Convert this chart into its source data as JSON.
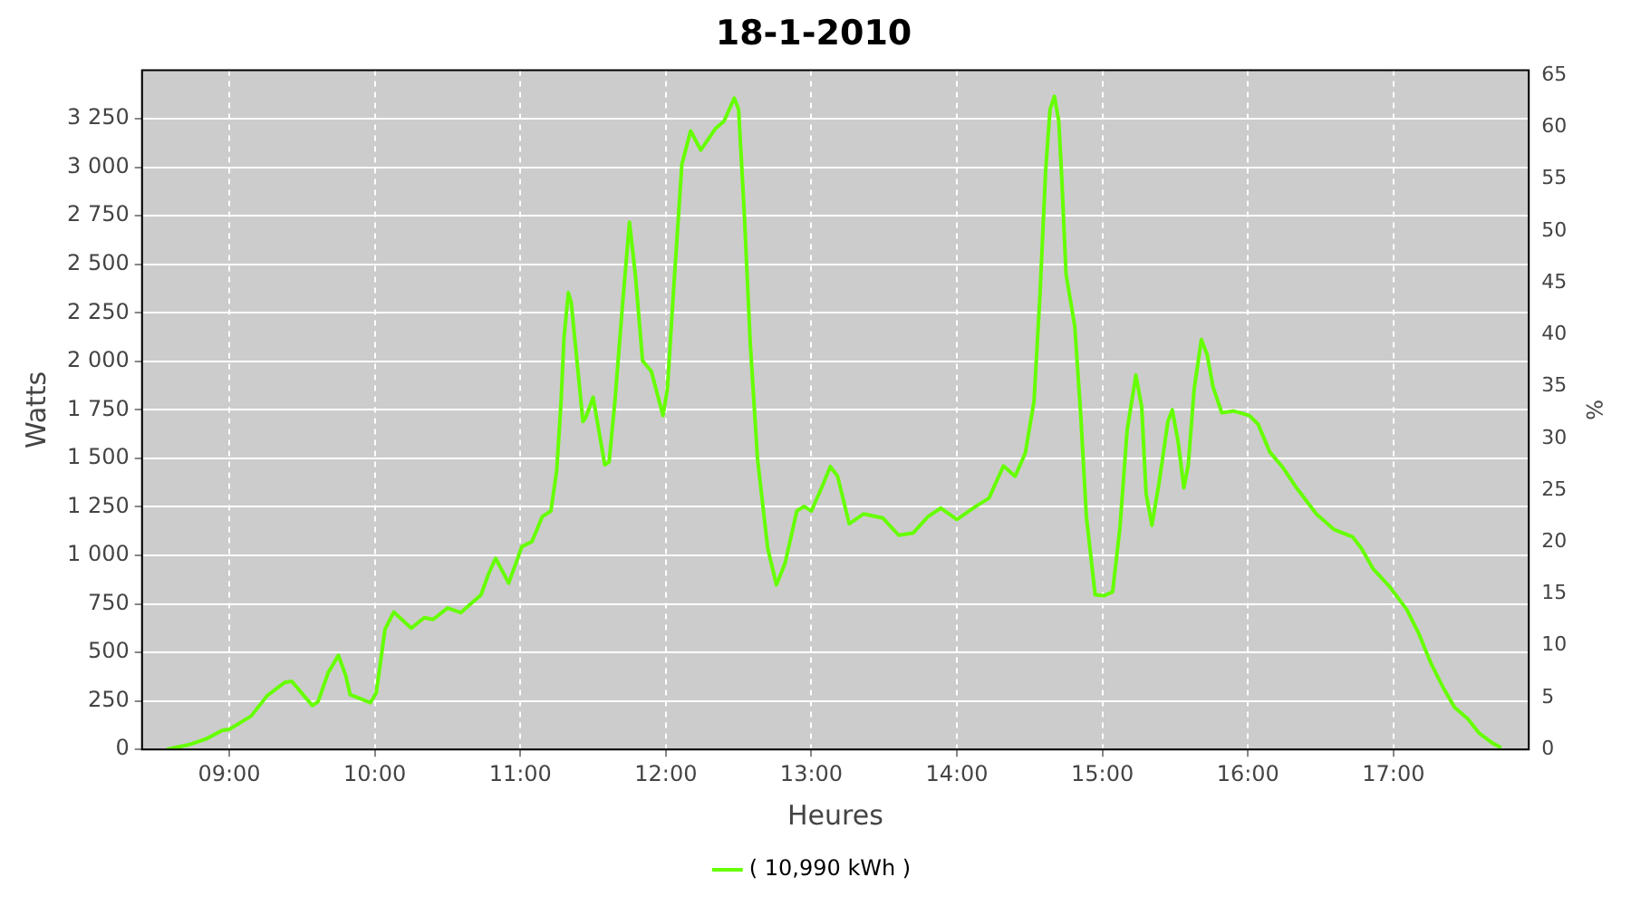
{
  "chart_data": {
    "type": "line",
    "title": "18-1-2010",
    "xlabel": "Heures",
    "ylabel": "Watts",
    "y2label": "%",
    "xlim": [
      8.4,
      17.93
    ],
    "xticks": [
      {
        "value": 9,
        "label": "09:00"
      },
      {
        "value": 10,
        "label": "10:00"
      },
      {
        "value": 11,
        "label": "11:00"
      },
      {
        "value": 12,
        "label": "12:00"
      },
      {
        "value": 13,
        "label": "13:00"
      },
      {
        "value": 14,
        "label": "14:00"
      },
      {
        "value": 15,
        "label": "15:00"
      },
      {
        "value": 16,
        "label": "16:00"
      },
      {
        "value": 17,
        "label": "17:00"
      }
    ],
    "ylim": [
      0,
      3500
    ],
    "yticks": [
      0,
      250,
      500,
      750,
      {
        "value": 1000,
        "label": "1 000"
      },
      {
        "value": 1250,
        "label": "1 250"
      },
      {
        "value": 1500,
        "label": "1 500"
      },
      {
        "value": 1750,
        "label": "1 750"
      },
      {
        "value": 2000,
        "label": "2 000"
      },
      {
        "value": 2250,
        "label": "2 250"
      },
      {
        "value": 2500,
        "label": "2 500"
      },
      {
        "value": 2750,
        "label": "2 750"
      },
      {
        "value": 3000,
        "label": "3 000"
      },
      {
        "value": 3250,
        "label": "3 250"
      }
    ],
    "y2lim": [
      0,
      65.5
    ],
    "y2ticks": [
      0,
      5,
      10,
      15,
      20,
      25,
      30,
      35,
      40,
      45,
      50,
      55,
      60,
      65
    ],
    "grid": true,
    "legend": "bottom",
    "marker": "none",
    "line_style": "solid",
    "series": [
      {
        "name": "( 10,990 kWh )",
        "color": "#66ff00",
        "x": [
          8.57,
          8.72,
          8.84,
          8.95,
          9.0,
          9.15,
          9.26,
          9.38,
          9.43,
          9.57,
          9.61,
          9.68,
          9.75,
          9.8,
          9.83,
          9.9,
          9.97,
          10.01,
          10.07,
          10.13,
          10.25,
          10.34,
          10.4,
          10.5,
          10.59,
          10.73,
          10.78,
          10.83,
          10.92,
          10.97,
          11.01,
          11.08,
          11.15,
          11.21,
          11.25,
          11.28,
          11.3,
          11.33,
          11.35,
          11.43,
          11.45,
          11.5,
          11.58,
          11.61,
          11.65,
          11.7,
          11.75,
          11.79,
          11.84,
          11.9,
          11.98,
          12.01,
          12.05,
          12.11,
          12.17,
          12.24,
          12.34,
          12.4,
          12.47,
          12.5,
          12.54,
          12.58,
          12.63,
          12.7,
          12.76,
          12.82,
          12.9,
          12.95,
          13.0,
          13.07,
          13.13,
          13.18,
          13.26,
          13.36,
          13.49,
          13.6,
          13.7,
          13.8,
          13.89,
          14.0,
          14.13,
          14.22,
          14.32,
          14.4,
          14.47,
          14.53,
          14.57,
          14.61,
          14.64,
          14.67,
          14.7,
          14.72,
          14.75,
          14.81,
          14.85,
          14.89,
          14.95,
          15.01,
          15.07,
          15.12,
          15.17,
          15.23,
          15.27,
          15.3,
          15.34,
          15.39,
          15.45,
          15.48,
          15.52,
          15.56,
          15.59,
          15.63,
          15.68,
          15.72,
          15.76,
          15.82,
          15.9,
          16.01,
          16.07,
          16.15,
          16.24,
          16.34,
          16.47,
          16.59,
          16.72,
          16.78,
          16.86,
          16.97,
          17.09,
          17.17,
          17.26,
          17.34,
          17.42,
          17.51,
          17.59,
          17.68,
          17.74
        ],
        "values": [
          0,
          24,
          54,
          98,
          104,
          172,
          277,
          345,
          351,
          226,
          247,
          396,
          485,
          381,
          283,
          262,
          241,
          292,
          619,
          708,
          625,
          679,
          670,
          729,
          705,
          797,
          902,
          985,
          857,
          961,
          1045,
          1071,
          1199,
          1229,
          1438,
          1795,
          2122,
          2354,
          2301,
          1690,
          1711,
          1815,
          1467,
          1482,
          1795,
          2271,
          2717,
          2449,
          2003,
          1949,
          1721,
          1854,
          2330,
          3015,
          3188,
          3089,
          3199,
          3238,
          3357,
          3298,
          2747,
          2092,
          1497,
          1036,
          848,
          962,
          1229,
          1253,
          1229,
          1348,
          1458,
          1408,
          1163,
          1214,
          1193,
          1104,
          1116,
          1199,
          1244,
          1185,
          1253,
          1295,
          1461,
          1408,
          1527,
          1795,
          2330,
          2985,
          3298,
          3366,
          3238,
          2955,
          2449,
          2181,
          1735,
          1199,
          797,
          792,
          812,
          1140,
          1646,
          1929,
          1765,
          1319,
          1155,
          1378,
          1690,
          1750,
          1587,
          1348,
          1467,
          1854,
          2113,
          2033,
          1869,
          1735,
          1744,
          1721,
          1676,
          1533,
          1453,
          1342,
          1214,
          1134,
          1095,
          1036,
          931,
          842,
          723,
          604,
          440,
          321,
          217,
          158,
          83,
          33,
          9
        ]
      }
    ]
  }
}
